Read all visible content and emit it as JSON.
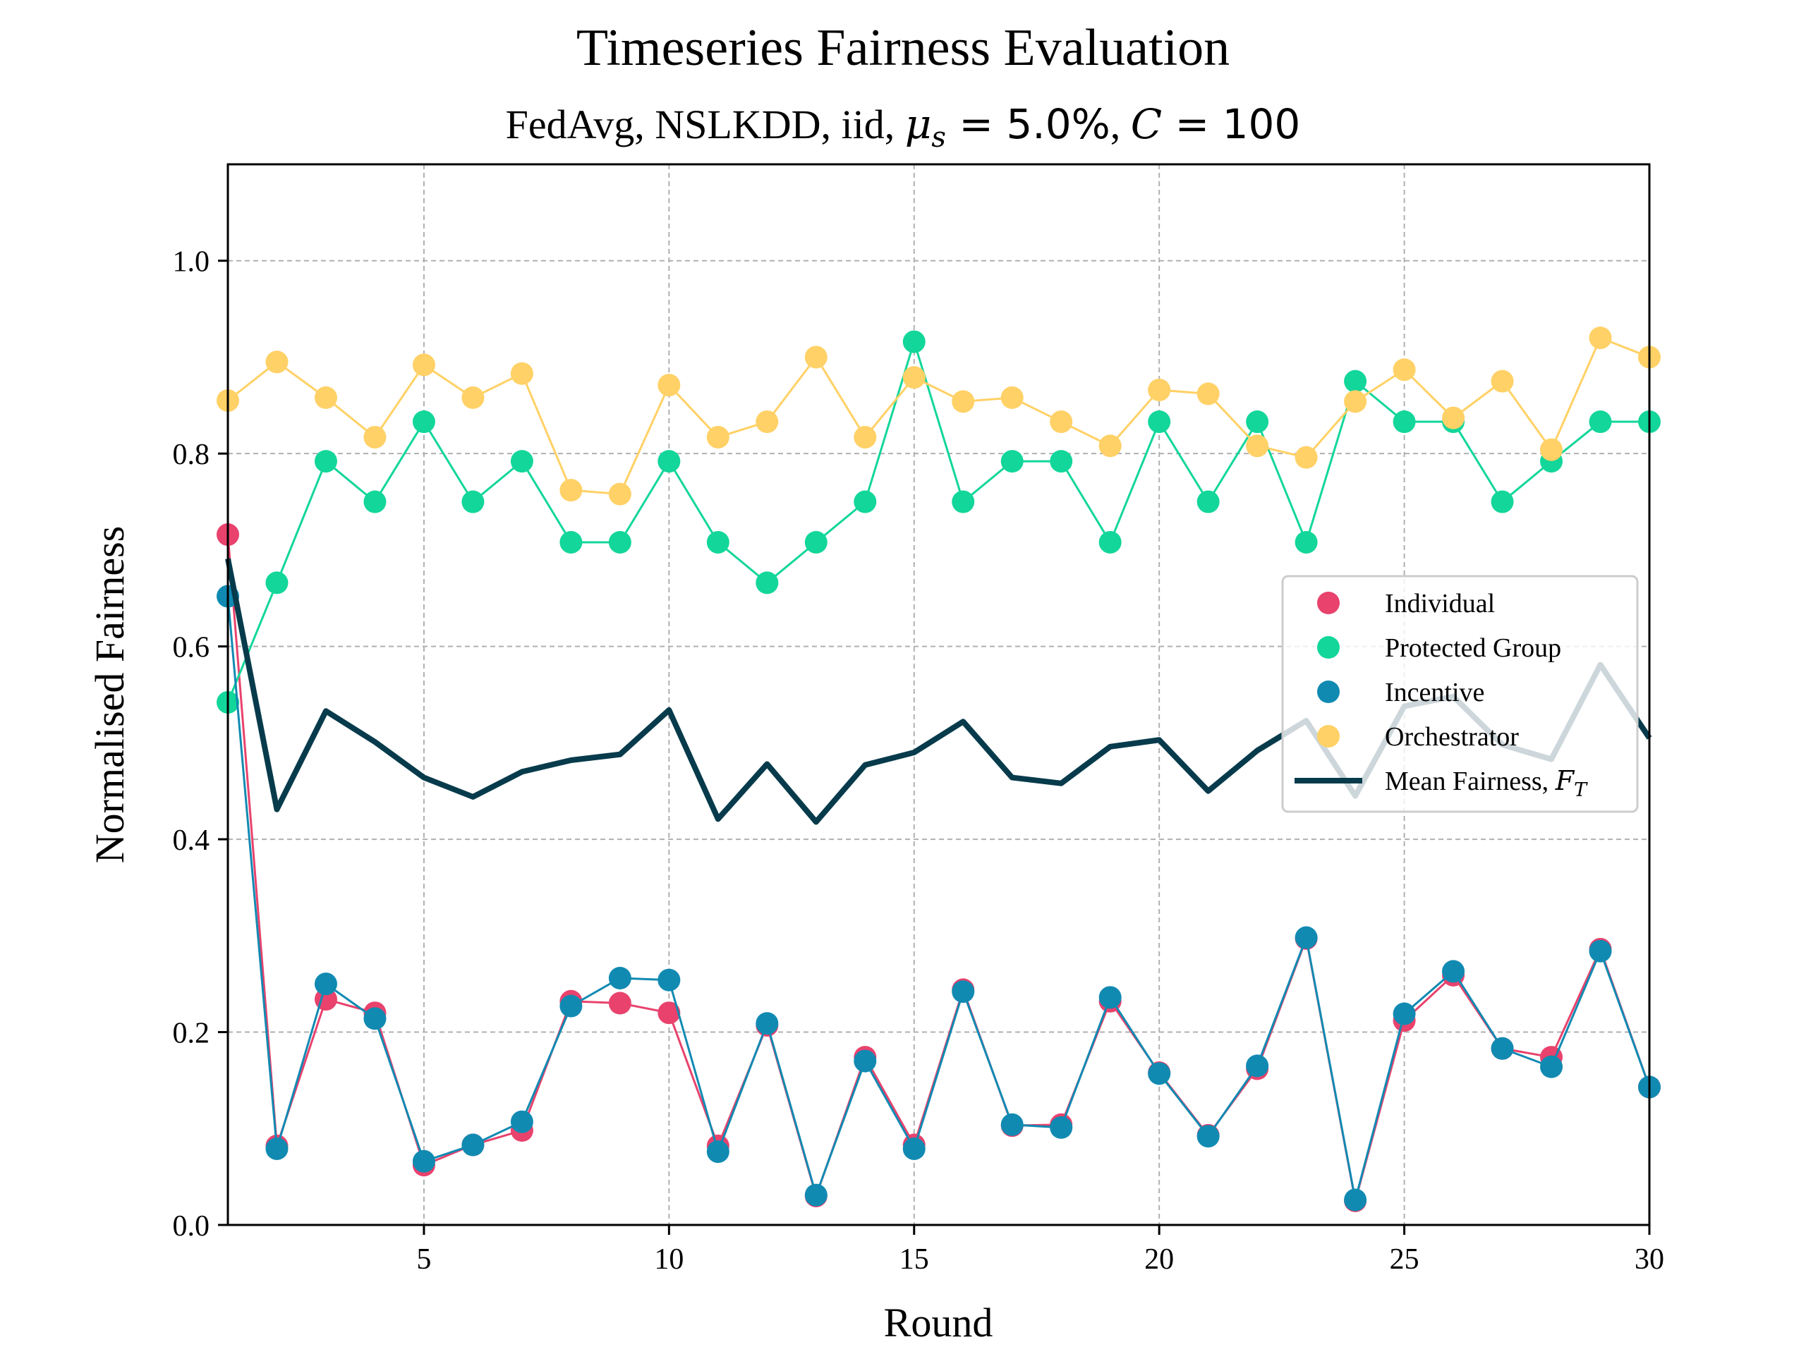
{
  "chart_data": {
    "type": "line",
    "title": "Timeseries Fairness Evaluation",
    "subtitle": {
      "prefix": "FedAvg, NSLKDD, iid, ",
      "mu": "μ",
      "mu_sub": "s",
      "mu_value": " = 5.0%",
      "sep": ", ",
      "c": "C",
      "c_value": " = 100"
    },
    "xlabel": "Round",
    "ylabel": "Normalised Fairness",
    "xlim": [
      1,
      30
    ],
    "ylim": [
      0,
      1.1
    ],
    "xticks": [
      5,
      10,
      15,
      20,
      25,
      30
    ],
    "yticks": [
      0.0,
      0.2,
      0.4,
      0.6,
      0.8,
      1.0
    ],
    "ytick_labels": [
      "0.0",
      "0.2",
      "0.4",
      "0.6",
      "0.8",
      "1.0"
    ],
    "grid": true,
    "legend_position": "center-right",
    "x": [
      1,
      2,
      3,
      4,
      5,
      6,
      7,
      8,
      9,
      10,
      11,
      12,
      13,
      14,
      15,
      16,
      17,
      18,
      19,
      20,
      21,
      22,
      23,
      24,
      25,
      26,
      27,
      28,
      29,
      30
    ],
    "series": [
      {
        "name": "Individual",
        "color": "#e8426d",
        "marker": "circle",
        "values": [
          0.716,
          0.082,
          0.234,
          0.22,
          0.062,
          0.083,
          0.098,
          0.232,
          0.23,
          0.22,
          0.082,
          0.207,
          0.03,
          0.174,
          0.083,
          0.244,
          0.103,
          0.104,
          0.232,
          0.158,
          0.093,
          0.162,
          0.297,
          0.025,
          0.212,
          0.259,
          0.183,
          0.174,
          0.286,
          0.143
        ]
      },
      {
        "name": "Protected Group",
        "color": "#12d69a",
        "marker": "circle",
        "values": [
          0.542,
          0.666,
          0.792,
          0.75,
          0.833,
          0.75,
          0.792,
          0.708,
          0.708,
          0.792,
          0.708,
          0.666,
          0.708,
          0.75,
          0.916,
          0.75,
          0.792,
          0.792,
          0.708,
          0.833,
          0.75,
          0.833,
          0.708,
          0.875,
          0.833,
          0.833,
          0.75,
          0.792,
          0.833,
          0.833
        ]
      },
      {
        "name": "Incentive",
        "color": "#118ab2",
        "marker": "circle",
        "values": [
          0.652,
          0.079,
          0.25,
          0.214,
          0.066,
          0.083,
          0.107,
          0.227,
          0.256,
          0.254,
          0.076,
          0.209,
          0.031,
          0.17,
          0.079,
          0.242,
          0.104,
          0.101,
          0.236,
          0.157,
          0.092,
          0.165,
          0.298,
          0.026,
          0.219,
          0.263,
          0.183,
          0.164,
          0.284,
          0.143
        ]
      },
      {
        "name": "Orchestrator",
        "color": "#ffd166",
        "marker": "circle",
        "values": [
          0.855,
          0.895,
          0.858,
          0.817,
          0.892,
          0.858,
          0.883,
          0.762,
          0.758,
          0.871,
          0.817,
          0.833,
          0.9,
          0.817,
          0.879,
          0.854,
          0.858,
          0.833,
          0.808,
          0.866,
          0.862,
          0.808,
          0.796,
          0.854,
          0.887,
          0.837,
          0.875,
          0.804,
          0.92,
          0.9
        ]
      },
      {
        "name": "Mean Fairness, ",
        "name_math": "F",
        "name_math_sub": "T",
        "color": "#073b4c",
        "marker": "none",
        "values": [
          0.691,
          0.431,
          0.533,
          0.501,
          0.464,
          0.444,
          0.47,
          0.482,
          0.488,
          0.534,
          0.421,
          0.478,
          0.418,
          0.477,
          0.49,
          0.522,
          0.464,
          0.458,
          0.496,
          0.503,
          0.45,
          0.492,
          0.523,
          0.445,
          0.538,
          0.548,
          0.498,
          0.483,
          0.581,
          0.505
        ]
      }
    ]
  }
}
